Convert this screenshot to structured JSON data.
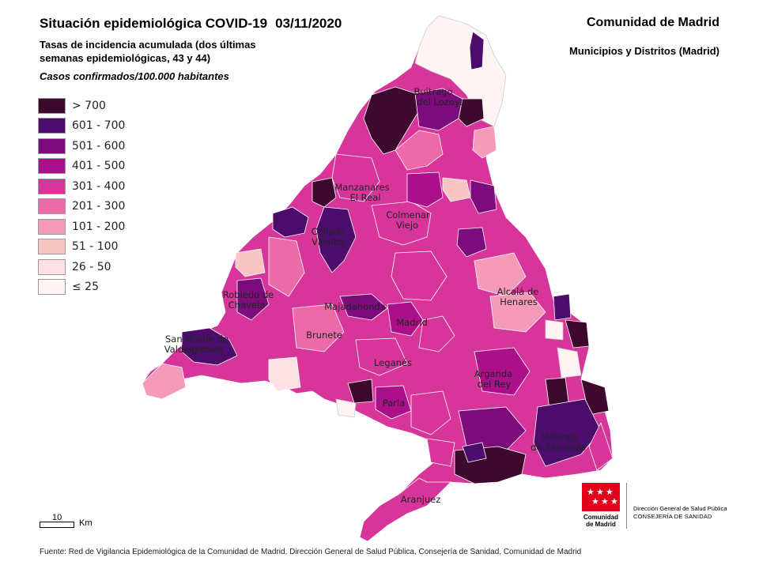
{
  "header": {
    "title": "Situación epidemiológica COVID-19",
    "date": "03/11/2020",
    "subtitle_line1": "Tasas de incidencia acumulada (dos últimas",
    "subtitle_line2": "semanas epidemiológicas, 43 y 44)",
    "subtitle2": "Casos confirmados/100.000 habitantes",
    "region": "Comunidad de Madrid",
    "region_sub": "Municipios y Distritos (Madrid)"
  },
  "legend": [
    {
      "label": "> 700",
      "color": "#3d0a2e"
    },
    {
      "label": "601 - 700",
      "color": "#4b0c6b"
    },
    {
      "label": "501 - 600",
      "color": "#7c0c7c"
    },
    {
      "label": "401 - 500",
      "color": "#ab0f8a"
    },
    {
      "label": "301 - 400",
      "color": "#d7359a"
    },
    {
      "label": "201 - 300",
      "color": "#ec6aa8"
    },
    {
      "label": "101 - 200",
      "color": "#f59ab8"
    },
    {
      "label": "51 - 100",
      "color": "#f9c4c4"
    },
    {
      "label": "26 - 50",
      "color": "#fde1e3"
    },
    {
      "label": "≤ 25",
      "color": "#fff4f4"
    }
  ],
  "places": [
    {
      "name": "Buitrago",
      "name2": "del Lozoya"
    },
    {
      "name": "Manzanares",
      "name2": "El Real"
    },
    {
      "name": "Colmenar",
      "name2": "Viejo"
    },
    {
      "name": "Collado",
      "name2": "Villalba"
    },
    {
      "name": "Alcalá de",
      "name2": "Henares"
    },
    {
      "name": "Robledo de",
      "name2": "Chavela"
    },
    {
      "name": "Majadahonda",
      "name2": ""
    },
    {
      "name": "Madrid",
      "name2": ""
    },
    {
      "name": "Brunete",
      "name2": ""
    },
    {
      "name": "San Martín de",
      "name2": "Valdeiglesias"
    },
    {
      "name": "Leganés",
      "name2": ""
    },
    {
      "name": "Arganda",
      "name2": "del Rey"
    },
    {
      "name": "Parla",
      "name2": ""
    },
    {
      "name": "Villarejo",
      "name2": "de Salvanés"
    },
    {
      "name": "Aranjuez",
      "name2": ""
    }
  ],
  "scale": {
    "value": "10",
    "unit": "Km"
  },
  "logo": {
    "name_line1": "Comunidad",
    "name_line2": "de Madrid",
    "text1": "Dirección General de Salud Pública",
    "text2": "CONSEJERÍA DE SANIDAD"
  },
  "source": "Fuente: Red de Vigilancia Epidemiológica de la Comunidad de Madrid, Dirección General de Salud Pública, Consejería de Sanidad, Comunidad de Madrid"
}
